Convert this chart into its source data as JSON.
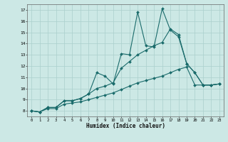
{
  "xlabel": "Humidex (Indice chaleur)",
  "bg_color": "#cce8e5",
  "line_color": "#1a6b6b",
  "grid_color": "#aacfcc",
  "xlim": [
    -0.5,
    23.5
  ],
  "ylim": [
    7.5,
    17.5
  ],
  "yticks": [
    8,
    9,
    10,
    11,
    12,
    13,
    14,
    15,
    16,
    17
  ],
  "xticks": [
    0,
    1,
    2,
    3,
    4,
    5,
    6,
    7,
    8,
    9,
    10,
    11,
    12,
    13,
    14,
    15,
    16,
    17,
    18,
    19,
    20,
    21,
    22,
    23
  ],
  "series1_x": [
    0,
    1,
    2,
    3,
    4,
    5,
    6,
    7,
    8,
    9,
    10,
    11,
    12,
    13,
    14,
    15,
    16,
    17,
    18,
    19,
    20,
    21,
    22,
    23
  ],
  "series1_y": [
    8.0,
    7.9,
    8.3,
    8.3,
    8.9,
    8.9,
    9.1,
    9.5,
    11.4,
    11.1,
    10.4,
    13.1,
    13.0,
    16.8,
    13.8,
    13.7,
    17.1,
    15.2,
    14.6,
    12.2,
    11.4,
    10.3,
    10.3,
    10.4
  ],
  "series2_x": [
    0,
    1,
    2,
    3,
    4,
    5,
    6,
    7,
    8,
    9,
    10,
    11,
    12,
    13,
    14,
    15,
    16,
    17,
    18,
    19,
    20,
    21,
    22,
    23
  ],
  "series2_y": [
    8.0,
    7.9,
    8.3,
    8.3,
    8.9,
    8.9,
    9.1,
    9.5,
    10.0,
    10.2,
    10.5,
    11.8,
    12.4,
    13.0,
    13.4,
    13.8,
    14.1,
    15.3,
    14.8,
    12.2,
    11.4,
    10.3,
    10.3,
    10.4
  ],
  "series3_x": [
    0,
    1,
    2,
    3,
    4,
    5,
    6,
    7,
    8,
    9,
    10,
    11,
    12,
    13,
    14,
    15,
    16,
    17,
    18,
    19,
    20,
    21,
    22,
    23
  ],
  "series3_y": [
    8.0,
    7.9,
    8.2,
    8.2,
    8.6,
    8.7,
    8.8,
    9.0,
    9.2,
    9.4,
    9.6,
    9.9,
    10.2,
    10.5,
    10.7,
    10.9,
    11.1,
    11.4,
    11.7,
    11.9,
    10.3,
    10.3,
    10.3,
    10.4
  ]
}
